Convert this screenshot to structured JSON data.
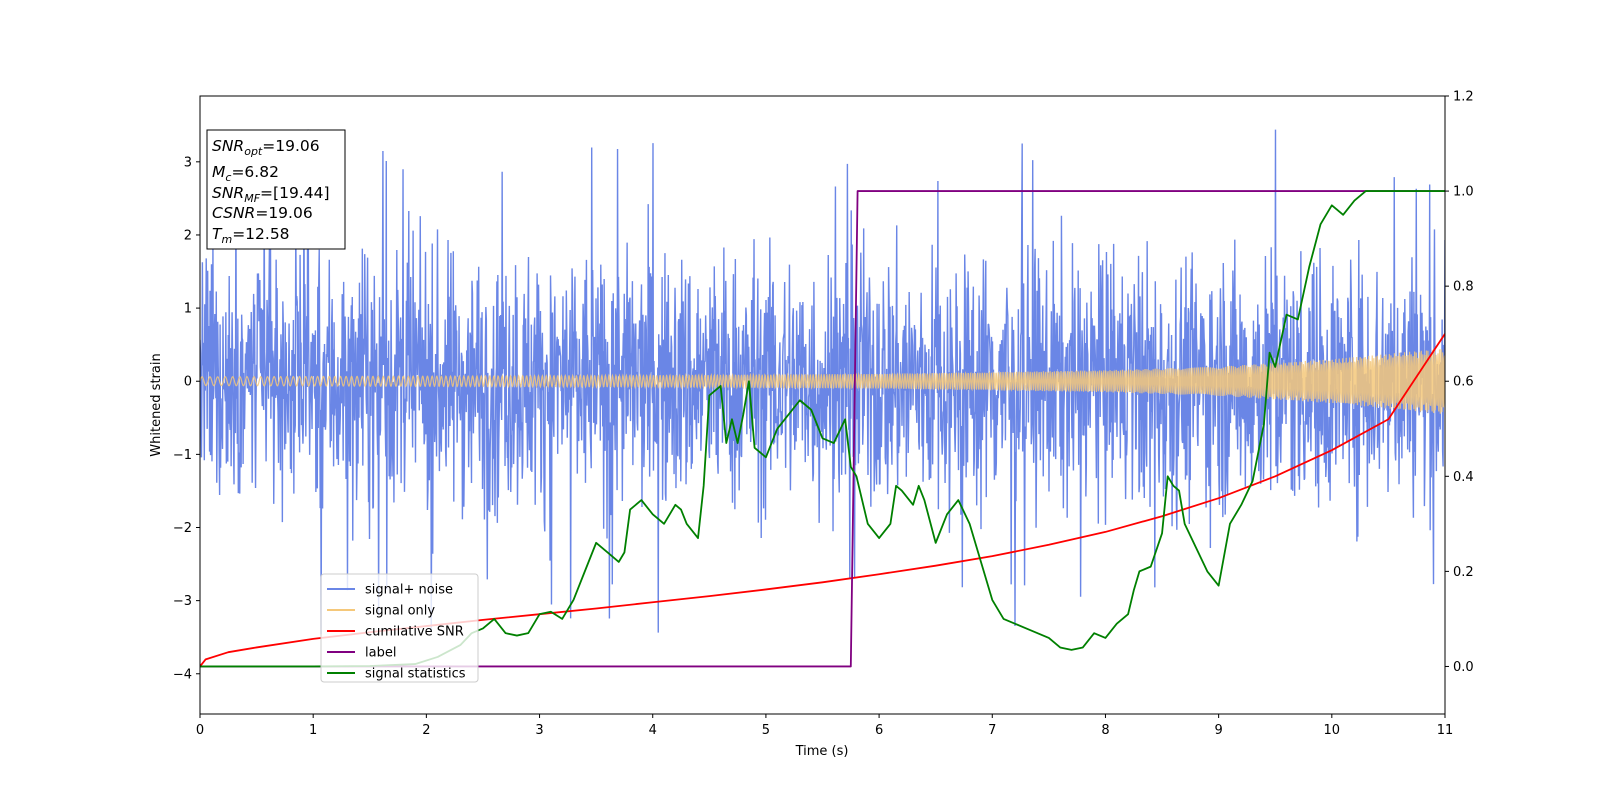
{
  "chart_data": {
    "type": "line",
    "title": "",
    "xlabel": "Time (s)",
    "ylabel": "Whitened strain",
    "y2label": "",
    "xlim": [
      0,
      11
    ],
    "ylim": [
      -4.55,
      3.9
    ],
    "y2lim": [
      -0.1,
      1.2
    ],
    "x_ticks": [
      "0",
      "1",
      "2",
      "3",
      "4",
      "5",
      "6",
      "7",
      "8",
      "9",
      "10",
      "11"
    ],
    "y_ticks": [
      "−4",
      "−3",
      "−2",
      "−1",
      "0",
      "1",
      "2",
      "3"
    ],
    "y2_ticks": [
      "0.0",
      "0.2",
      "0.4",
      "0.6",
      "0.8",
      "1.0",
      "1.2"
    ],
    "grid": false,
    "legend_position": "lower-left",
    "annotation": {
      "lines": [
        {
          "symbol": "SNR",
          "sub": "opt",
          "value": "=19.06"
        },
        {
          "symbol": "M",
          "sub": "c",
          "value": "=6.82"
        },
        {
          "symbol": "SNR",
          "sub": "MF",
          "value": "=[19.44]"
        },
        {
          "symbol": "CSNR",
          "sub": "",
          "value": "=19.06"
        },
        {
          "symbol": "T",
          "sub": "m",
          "value": "=12.58"
        }
      ]
    },
    "series": [
      {
        "name": "signal+ noise",
        "axis": "left",
        "color": "#6a86e6",
        "kind": "noisy-band",
        "approx_envelope": {
          "typical_amplitude": 1.4,
          "max_peak": 3.5,
          "min_peak": -4.15
        }
      },
      {
        "name": "signal only",
        "axis": "left",
        "color": "#f5c87a",
        "kind": "chirp",
        "amplitude_envelope": {
          "x": [
            0,
            2,
            4,
            6,
            8,
            9,
            10,
            11
          ],
          "y": [
            0.06,
            0.07,
            0.08,
            0.1,
            0.15,
            0.2,
            0.3,
            0.45
          ]
        }
      },
      {
        "name": "cumilative SNR",
        "axis": "right",
        "color": "#ff0000",
        "x": [
          0,
          0.05,
          0.25,
          0.5,
          1,
          1.5,
          2,
          2.5,
          3,
          3.5,
          4,
          4.5,
          5,
          5.5,
          6,
          6.5,
          7,
          7.5,
          8,
          8.5,
          9,
          9.5,
          10,
          10.5,
          11
        ],
        "y": [
          0.0,
          0.015,
          0.03,
          0.04,
          0.058,
          0.072,
          0.085,
          0.098,
          0.11,
          0.122,
          0.135,
          0.148,
          0.162,
          0.177,
          0.194,
          0.212,
          0.232,
          0.256,
          0.283,
          0.316,
          0.354,
          0.4,
          0.455,
          0.52,
          0.7
        ]
      },
      {
        "name": "label",
        "axis": "right",
        "color": "#800080",
        "x": [
          0,
          5.75,
          5.81,
          11
        ],
        "y": [
          0,
          0,
          1,
          1
        ]
      },
      {
        "name": "signal statistics",
        "axis": "right",
        "color": "#008000",
        "x": [
          0,
          1,
          1.5,
          1.9,
          2.1,
          2.3,
          2.4,
          2.5,
          2.6,
          2.7,
          2.8,
          2.9,
          3.0,
          3.1,
          3.2,
          3.3,
          3.4,
          3.5,
          3.6,
          3.7,
          3.75,
          3.8,
          3.9,
          4.0,
          4.1,
          4.2,
          4.25,
          4.3,
          4.4,
          4.45,
          4.5,
          4.6,
          4.65,
          4.7,
          4.75,
          4.8,
          4.85,
          4.9,
          5.0,
          5.1,
          5.2,
          5.3,
          5.4,
          5.5,
          5.6,
          5.7,
          5.75,
          5.8,
          5.9,
          6.0,
          6.1,
          6.15,
          6.2,
          6.3,
          6.35,
          6.4,
          6.5,
          6.6,
          6.7,
          6.8,
          6.9,
          7.0,
          7.1,
          7.2,
          7.3,
          7.4,
          7.5,
          7.6,
          7.7,
          7.8,
          7.9,
          8.0,
          8.1,
          8.2,
          8.25,
          8.3,
          8.4,
          8.5,
          8.55,
          8.6,
          8.65,
          8.7,
          8.8,
          8.9,
          9.0,
          9.1,
          9.2,
          9.3,
          9.4,
          9.45,
          9.5,
          9.6,
          9.7,
          9.8,
          9.9,
          10.0,
          10.1,
          10.2,
          10.3,
          10.5,
          11
        ],
        "y": [
          0.0,
          0.0,
          0.001,
          0.005,
          0.02,
          0.045,
          0.07,
          0.08,
          0.1,
          0.07,
          0.065,
          0.07,
          0.11,
          0.115,
          0.1,
          0.14,
          0.2,
          0.26,
          0.24,
          0.22,
          0.24,
          0.33,
          0.35,
          0.32,
          0.3,
          0.34,
          0.33,
          0.3,
          0.27,
          0.38,
          0.57,
          0.59,
          0.47,
          0.52,
          0.47,
          0.53,
          0.6,
          0.46,
          0.44,
          0.5,
          0.53,
          0.56,
          0.54,
          0.48,
          0.47,
          0.52,
          0.42,
          0.4,
          0.3,
          0.27,
          0.3,
          0.38,
          0.37,
          0.34,
          0.38,
          0.35,
          0.26,
          0.32,
          0.35,
          0.3,
          0.22,
          0.14,
          0.1,
          0.09,
          0.08,
          0.07,
          0.06,
          0.04,
          0.035,
          0.04,
          0.07,
          0.06,
          0.09,
          0.11,
          0.16,
          0.2,
          0.21,
          0.28,
          0.4,
          0.38,
          0.37,
          0.3,
          0.25,
          0.2,
          0.17,
          0.3,
          0.34,
          0.39,
          0.51,
          0.66,
          0.63,
          0.74,
          0.73,
          0.84,
          0.93,
          0.97,
          0.95,
          0.98,
          1.0,
          1.0,
          1.0
        ]
      }
    ]
  }
}
